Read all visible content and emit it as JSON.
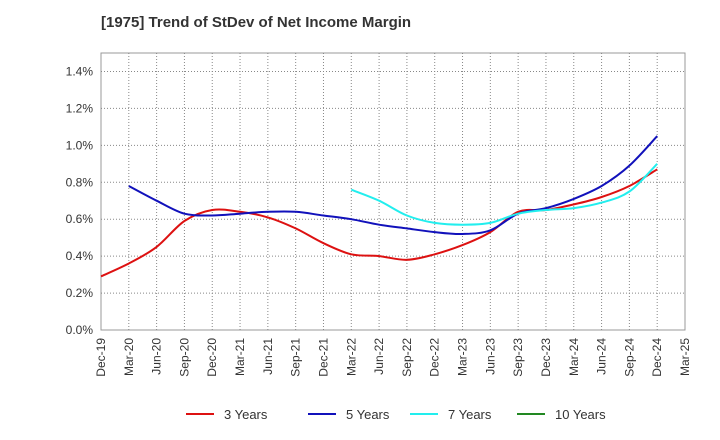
{
  "chart_data": {
    "type": "line",
    "title": "[1975]  Trend of StDev of Net Income Margin",
    "xlabel": "",
    "ylabel": "",
    "x_ticks": [
      "Dec-19",
      "Mar-20",
      "Jun-20",
      "Sep-20",
      "Dec-20",
      "Mar-21",
      "Jun-21",
      "Sep-21",
      "Dec-21",
      "Mar-22",
      "Jun-22",
      "Sep-22",
      "Dec-22",
      "Mar-23",
      "Jun-23",
      "Sep-23",
      "Dec-23",
      "Mar-24",
      "Jun-24",
      "Sep-24",
      "Dec-24",
      "Mar-25"
    ],
    "y_ticks": [
      "0.0%",
      "0.2%",
      "0.4%",
      "0.6%",
      "0.8%",
      "1.0%",
      "1.2%",
      "1.4%"
    ],
    "ylim": [
      0,
      1.5
    ],
    "y_unit": "%",
    "grid": true,
    "legend_position": "bottom",
    "series": [
      {
        "name": "3 Years",
        "color": "#dd1111",
        "points": [
          [
            "Dec-19",
            0.29
          ],
          [
            "Mar-20",
            0.36
          ],
          [
            "Jun-20",
            0.45
          ],
          [
            "Sep-20",
            0.59
          ],
          [
            "Dec-20",
            0.65
          ],
          [
            "Mar-21",
            0.64
          ],
          [
            "Jun-21",
            0.61
          ],
          [
            "Sep-21",
            0.55
          ],
          [
            "Dec-21",
            0.47
          ],
          [
            "Mar-22",
            0.41
          ],
          [
            "Jun-22",
            0.4
          ],
          [
            "Sep-22",
            0.38
          ],
          [
            "Dec-22",
            0.41
          ],
          [
            "Mar-23",
            0.46
          ],
          [
            "Jun-23",
            0.53
          ],
          [
            "Sep-23",
            0.64
          ],
          [
            "Dec-23",
            0.65
          ],
          [
            "Mar-24",
            0.68
          ],
          [
            "Jun-24",
            0.72
          ],
          [
            "Sep-24",
            0.78
          ],
          [
            "Dec-24",
            0.87
          ]
        ]
      },
      {
        "name": "5 Years",
        "color": "#1111bb",
        "points": [
          [
            "Mar-20",
            0.78
          ],
          [
            "Jun-20",
            0.7
          ],
          [
            "Sep-20",
            0.63
          ],
          [
            "Dec-20",
            0.62
          ],
          [
            "Mar-21",
            0.63
          ],
          [
            "Jun-21",
            0.64
          ],
          [
            "Sep-21",
            0.64
          ],
          [
            "Dec-21",
            0.62
          ],
          [
            "Mar-22",
            0.6
          ],
          [
            "Jun-22",
            0.57
          ],
          [
            "Sep-22",
            0.55
          ],
          [
            "Dec-22",
            0.53
          ],
          [
            "Mar-23",
            0.52
          ],
          [
            "Jun-23",
            0.54
          ],
          [
            "Sep-23",
            0.63
          ],
          [
            "Dec-23",
            0.66
          ],
          [
            "Mar-24",
            0.71
          ],
          [
            "Jun-24",
            0.78
          ],
          [
            "Sep-24",
            0.89
          ],
          [
            "Dec-24",
            1.05
          ]
        ]
      },
      {
        "name": "7 Years",
        "color": "#22eeee",
        "points": [
          [
            "Mar-22",
            0.76
          ],
          [
            "Jun-22",
            0.7
          ],
          [
            "Sep-22",
            0.62
          ],
          [
            "Dec-22",
            0.58
          ],
          [
            "Mar-23",
            0.57
          ],
          [
            "Jun-23",
            0.58
          ],
          [
            "Sep-23",
            0.63
          ],
          [
            "Dec-23",
            0.65
          ],
          [
            "Mar-24",
            0.66
          ],
          [
            "Jun-24",
            0.69
          ],
          [
            "Sep-24",
            0.75
          ],
          [
            "Dec-24",
            0.9
          ]
        ]
      },
      {
        "name": "10 Years",
        "color": "#228822",
        "points": []
      }
    ]
  }
}
